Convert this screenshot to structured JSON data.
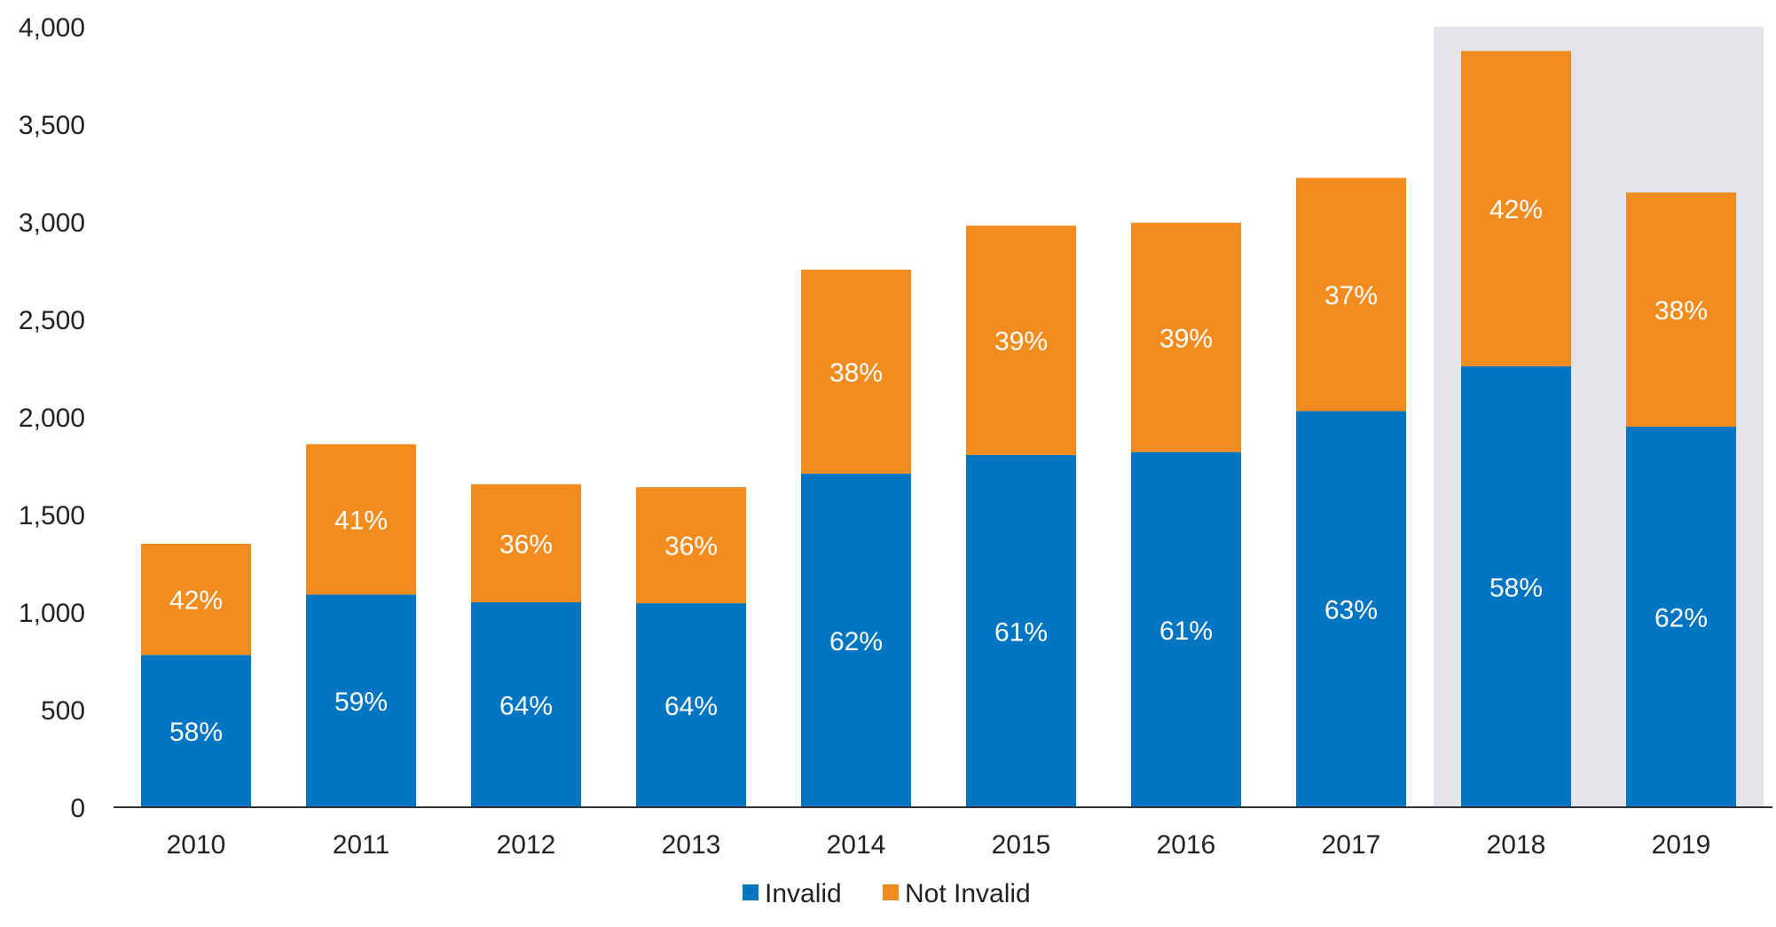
{
  "chart_data": {
    "type": "bar",
    "stacked": true,
    "categories": [
      "2010",
      "2011",
      "2012",
      "2013",
      "2014",
      "2015",
      "2016",
      "2017",
      "2018",
      "2019"
    ],
    "series": [
      {
        "name": "Invalid",
        "color": "#0075c2",
        "values": [
          780,
          1090,
          1050,
          1045,
          1710,
          1805,
          1820,
          2030,
          2260,
          1950
        ],
        "labels": [
          "58%",
          "59%",
          "64%",
          "64%",
          "62%",
          "61%",
          "61%",
          "63%",
          "58%",
          "62%"
        ]
      },
      {
        "name": "Not Invalid",
        "color": "#f28c1e",
        "values": [
          570,
          770,
          605,
          595,
          1045,
          1175,
          1175,
          1195,
          1615,
          1200
        ],
        "labels": [
          "42%",
          "41%",
          "36%",
          "36%",
          "38%",
          "39%",
          "39%",
          "37%",
          "42%",
          "38%"
        ]
      }
    ],
    "ylim": [
      0,
      4000
    ],
    "yticks": [
      0,
      500,
      1000,
      1500,
      2000,
      2500,
      3000,
      3500,
      4000
    ],
    "ytick_labels": [
      "0",
      "500",
      "1,000",
      "1,500",
      "2,000",
      "2,500",
      "3,000",
      "3,500",
      "4,000"
    ],
    "highlight_categories": [
      "2018",
      "2019"
    ],
    "highlight_color": "#e4e5e8",
    "title": "",
    "xlabel": "",
    "ylabel": "",
    "legend_position": "bottom-center",
    "grid": false
  }
}
